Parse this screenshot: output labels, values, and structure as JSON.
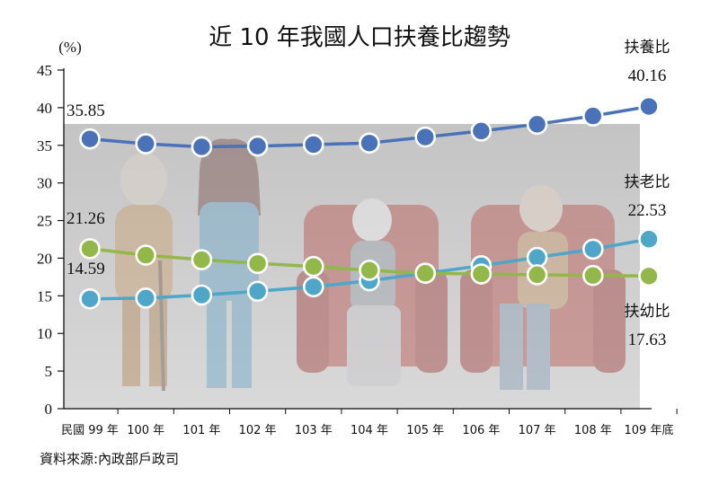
{
  "chart_data": {
    "type": "line",
    "title": "近 10 年我國人口扶養比趨勢",
    "unit_label": "(%)",
    "categories": [
      "民國 99 年",
      "100 年",
      "101 年",
      "102 年",
      "103 年",
      "104 年",
      "105 年",
      "106 年",
      "107 年",
      "108 年",
      "109 年底"
    ],
    "ylim": [
      0,
      45
    ],
    "yticks": [
      0,
      5,
      10,
      15,
      20,
      25,
      30,
      35,
      40,
      45
    ],
    "grid": false,
    "series": [
      {
        "name": "扶養比",
        "color": "#4a72b8",
        "values": [
          35.85,
          35.2,
          34.8,
          34.9,
          35.1,
          35.3,
          36.1,
          36.9,
          37.8,
          38.9,
          40.16
        ],
        "start_label": "35.85",
        "end_label": "40.16"
      },
      {
        "name": "扶老比",
        "color": "#4ea6c8",
        "values": [
          14.59,
          14.7,
          15.1,
          15.6,
          16.2,
          17.0,
          18.0,
          19.0,
          20.1,
          21.2,
          22.53
        ],
        "start_label": "14.59",
        "end_label": "22.53"
      },
      {
        "name": "扶幼比",
        "color": "#93b84a",
        "values": [
          21.26,
          20.4,
          19.8,
          19.3,
          18.9,
          18.4,
          18.0,
          17.9,
          17.8,
          17.7,
          17.63
        ],
        "start_label": "21.26",
        "end_label": "17.63"
      }
    ]
  },
  "source": "資料來源:內政部戶政司"
}
